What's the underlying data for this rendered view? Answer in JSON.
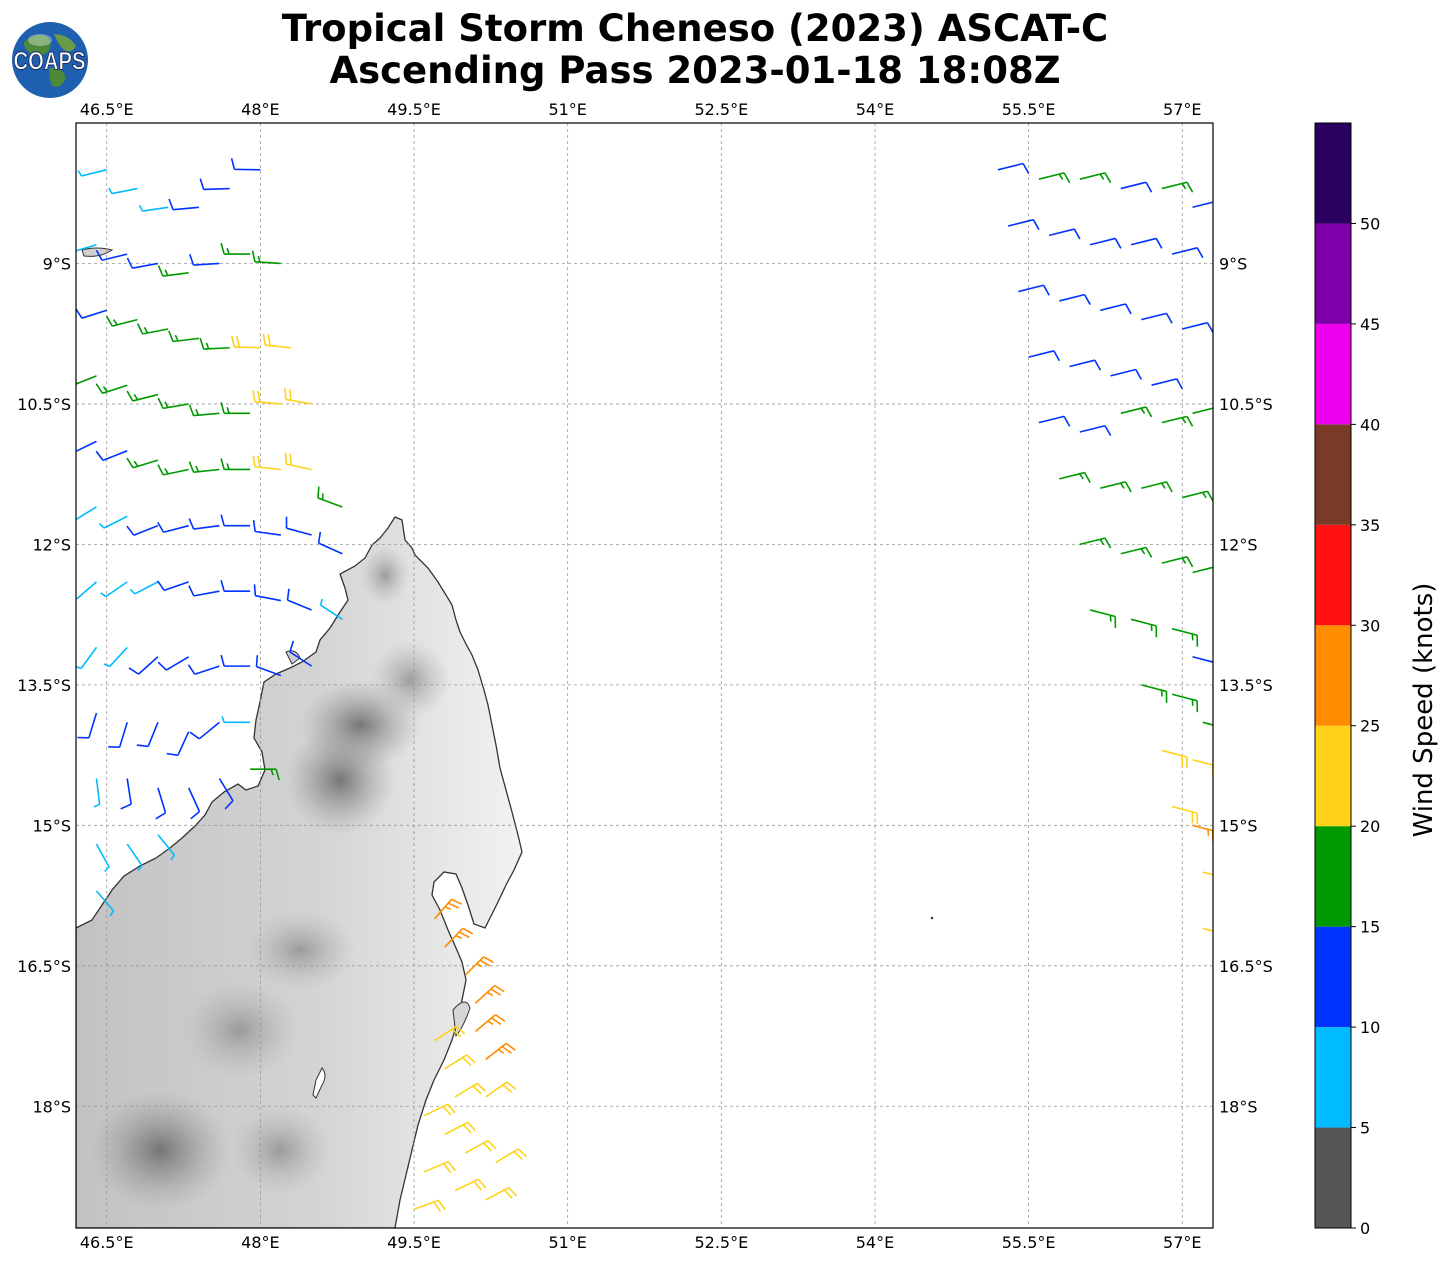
{
  "title": {
    "line1": "Tropical Storm Cheneso (2023) ASCAT-C",
    "line2": "Ascending Pass 2023-01-18 18:08Z"
  },
  "logo": {
    "text": "COAPS",
    "icon": "globe-icon"
  },
  "map": {
    "lon_range": [
      46.2,
      57.3
    ],
    "lat_range": [
      -19.3,
      -7.5
    ],
    "lon_ticks": [
      {
        "value": 46.5,
        "label": "46.5°E"
      },
      {
        "value": 48.0,
        "label": "48°E"
      },
      {
        "value": 49.5,
        "label": "49.5°E"
      },
      {
        "value": 51.0,
        "label": "51°E"
      },
      {
        "value": 52.5,
        "label": "52.5°E"
      },
      {
        "value": 54.0,
        "label": "54°E"
      },
      {
        "value": 55.5,
        "label": "55.5°E"
      },
      {
        "value": 57.0,
        "label": "57°E"
      }
    ],
    "lat_ticks": [
      {
        "value": -9.0,
        "label": "9°S"
      },
      {
        "value": -10.5,
        "label": "10.5°S"
      },
      {
        "value": -12.0,
        "label": "12°S"
      },
      {
        "value": -13.5,
        "label": "13.5°S"
      },
      {
        "value": -15.0,
        "label": "15°S"
      },
      {
        "value": -16.5,
        "label": "16.5°S"
      },
      {
        "value": -18.0,
        "label": "18°S"
      }
    ],
    "gridlines": true,
    "land_name": "Madagascar (northern)"
  },
  "colorbar": {
    "label": "Wind Speed (knots)",
    "ticks": [
      "0",
      "5",
      "10",
      "15",
      "20",
      "25",
      "30",
      "35",
      "40",
      "45",
      "50"
    ],
    "bins": [
      {
        "from": 0,
        "to": 5,
        "color": "#555555"
      },
      {
        "from": 5,
        "to": 10,
        "color": "#00bbff"
      },
      {
        "from": 10,
        "to": 15,
        "color": "#0033ff"
      },
      {
        "from": 15,
        "to": 20,
        "color": "#009900"
      },
      {
        "from": 20,
        "to": 25,
        "color": "#ffd21a"
      },
      {
        "from": 25,
        "to": 30,
        "color": "#ff8c00"
      },
      {
        "from": 30,
        "to": 35,
        "color": "#ff1111"
      },
      {
        "from": 35,
        "to": 40,
        "color": "#7a3a28"
      },
      {
        "from": 40,
        "to": 45,
        "color": "#ee00ee"
      },
      {
        "from": 45,
        "to": 50,
        "color": "#7d00aa"
      },
      {
        "from": 50,
        "to": 55,
        "color": "#2a0060"
      }
    ]
  },
  "wind_swaths": [
    {
      "name": "west-swath",
      "points": [
        {
          "lon": 46.5,
          "lat": -8.0,
          "spd": 8
        },
        {
          "lon": 46.8,
          "lat": -8.2,
          "spd": 8
        },
        {
          "lon": 47.1,
          "lat": -8.4,
          "spd": 8
        },
        {
          "lon": 47.4,
          "lat": -8.4,
          "spd": 12
        },
        {
          "lon": 47.7,
          "lat": -8.2,
          "spd": 12
        },
        {
          "lon": 48.0,
          "lat": -8.0,
          "spd": 12
        },
        {
          "lon": 46.4,
          "lat": -8.8,
          "spd": 8
        },
        {
          "lon": 46.7,
          "lat": -8.9,
          "spd": 12
        },
        {
          "lon": 47.0,
          "lat": -9.0,
          "spd": 12
        },
        {
          "lon": 47.3,
          "lat": -9.1,
          "spd": 16
        },
        {
          "lon": 47.6,
          "lat": -9.0,
          "spd": 12
        },
        {
          "lon": 47.9,
          "lat": -8.9,
          "spd": 16
        },
        {
          "lon": 48.2,
          "lat": -9.0,
          "spd": 16
        },
        {
          "lon": 46.5,
          "lat": -9.5,
          "spd": 12
        },
        {
          "lon": 46.8,
          "lat": -9.6,
          "spd": 16
        },
        {
          "lon": 47.1,
          "lat": -9.7,
          "spd": 16
        },
        {
          "lon": 47.4,
          "lat": -9.8,
          "spd": 16
        },
        {
          "lon": 47.7,
          "lat": -9.9,
          "spd": 18
        },
        {
          "lon": 48.0,
          "lat": -9.9,
          "spd": 22
        },
        {
          "lon": 48.3,
          "lat": -9.9,
          "spd": 22
        },
        {
          "lon": 46.4,
          "lat": -10.2,
          "spd": 16
        },
        {
          "lon": 46.7,
          "lat": -10.3,
          "spd": 16
        },
        {
          "lon": 47.0,
          "lat": -10.4,
          "spd": 17
        },
        {
          "lon": 47.3,
          "lat": -10.5,
          "spd": 18
        },
        {
          "lon": 47.6,
          "lat": -10.6,
          "spd": 18
        },
        {
          "lon": 47.9,
          "lat": -10.6,
          "spd": 18
        },
        {
          "lon": 48.2,
          "lat": -10.5,
          "spd": 22
        },
        {
          "lon": 48.5,
          "lat": -10.5,
          "spd": 22
        },
        {
          "lon": 46.4,
          "lat": -10.9,
          "spd": 12
        },
        {
          "lon": 46.7,
          "lat": -11.0,
          "spd": 12
        },
        {
          "lon": 47.0,
          "lat": -11.1,
          "spd": 16
        },
        {
          "lon": 47.3,
          "lat": -11.2,
          "spd": 16
        },
        {
          "lon": 47.6,
          "lat": -11.2,
          "spd": 17
        },
        {
          "lon": 47.9,
          "lat": -11.2,
          "spd": 18
        },
        {
          "lon": 48.2,
          "lat": -11.2,
          "spd": 22
        },
        {
          "lon": 48.5,
          "lat": -11.2,
          "spd": 22
        },
        {
          "lon": 48.8,
          "lat": -11.6,
          "spd": 18
        },
        {
          "lon": 46.4,
          "lat": -11.6,
          "spd": 8
        },
        {
          "lon": 46.7,
          "lat": -11.7,
          "spd": 8
        },
        {
          "lon": 47.0,
          "lat": -11.8,
          "spd": 12
        },
        {
          "lon": 47.3,
          "lat": -11.8,
          "spd": 12
        },
        {
          "lon": 47.6,
          "lat": -11.8,
          "spd": 12
        },
        {
          "lon": 47.9,
          "lat": -11.8,
          "spd": 12
        },
        {
          "lon": 48.2,
          "lat": -11.9,
          "spd": 12
        },
        {
          "lon": 48.5,
          "lat": -11.9,
          "spd": 12
        },
        {
          "lon": 48.8,
          "lat": -12.1,
          "spd": 12
        },
        {
          "lon": 46.4,
          "lat": -12.4,
          "spd": 8
        },
        {
          "lon": 46.7,
          "lat": -12.4,
          "spd": 8
        },
        {
          "lon": 47.0,
          "lat": -12.4,
          "spd": 8
        },
        {
          "lon": 47.3,
          "lat": -12.4,
          "spd": 12
        },
        {
          "lon": 47.6,
          "lat": -12.5,
          "spd": 12
        },
        {
          "lon": 47.9,
          "lat": -12.5,
          "spd": 12
        },
        {
          "lon": 48.2,
          "lat": -12.6,
          "spd": 12
        },
        {
          "lon": 48.5,
          "lat": -12.7,
          "spd": 12
        },
        {
          "lon": 48.8,
          "lat": -12.8,
          "spd": 8
        },
        {
          "lon": 46.4,
          "lat": -13.1,
          "spd": 8
        },
        {
          "lon": 46.7,
          "lat": -13.1,
          "spd": 8
        },
        {
          "lon": 47.0,
          "lat": -13.2,
          "spd": 12
        },
        {
          "lon": 47.3,
          "lat": -13.2,
          "spd": 12
        },
        {
          "lon": 47.6,
          "lat": -13.3,
          "spd": 12
        },
        {
          "lon": 47.9,
          "lat": -13.3,
          "spd": 12
        },
        {
          "lon": 48.2,
          "lat": -13.4,
          "spd": 12
        },
        {
          "lon": 48.5,
          "lat": -13.3,
          "spd": 12
        },
        {
          "lon": 46.4,
          "lat": -13.8,
          "spd": 12
        },
        {
          "lon": 46.7,
          "lat": -13.9,
          "spd": 12
        },
        {
          "lon": 47.0,
          "lat": -13.9,
          "spd": 12
        },
        {
          "lon": 47.3,
          "lat": -14.0,
          "spd": 12
        },
        {
          "lon": 47.6,
          "lat": -13.9,
          "spd": 12
        },
        {
          "lon": 47.9,
          "lat": -13.9,
          "spd": 8
        },
        {
          "lon": 46.4,
          "lat": -14.5,
          "spd": 8
        },
        {
          "lon": 46.7,
          "lat": -14.5,
          "spd": 12
        },
        {
          "lon": 47.0,
          "lat": -14.6,
          "spd": 12
        },
        {
          "lon": 47.3,
          "lat": -14.6,
          "spd": 12
        },
        {
          "lon": 47.6,
          "lat": -14.5,
          "spd": 12
        },
        {
          "lon": 47.9,
          "lat": -14.4,
          "spd": 18
        },
        {
          "lon": 46.4,
          "lat": -15.2,
          "spd": 8
        },
        {
          "lon": 46.7,
          "lat": -15.2,
          "spd": 8
        },
        {
          "lon": 47.0,
          "lat": -15.1,
          "spd": 8
        },
        {
          "lon": 46.4,
          "lat": -15.7,
          "spd": 8
        }
      ]
    },
    {
      "name": "land-edge-swath",
      "points": [
        {
          "lon": 49.7,
          "lat": -16.0,
          "spd": 27
        },
        {
          "lon": 49.8,
          "lat": -16.3,
          "spd": 27
        },
        {
          "lon": 50.0,
          "lat": -16.6,
          "spd": 27
        },
        {
          "lon": 50.1,
          "lat": -16.9,
          "spd": 27
        },
        {
          "lon": 50.1,
          "lat": -17.2,
          "spd": 27
        },
        {
          "lon": 50.2,
          "lat": -17.5,
          "spd": 27
        },
        {
          "lon": 49.7,
          "lat": -17.3,
          "spd": 22
        },
        {
          "lon": 49.8,
          "lat": -17.6,
          "spd": 22
        },
        {
          "lon": 49.9,
          "lat": -17.9,
          "spd": 22
        },
        {
          "lon": 50.2,
          "lat": -17.9,
          "spd": 22
        },
        {
          "lon": 49.6,
          "lat": -18.1,
          "spd": 22
        },
        {
          "lon": 49.8,
          "lat": -18.3,
          "spd": 22
        },
        {
          "lon": 50.0,
          "lat": -18.5,
          "spd": 22
        },
        {
          "lon": 50.3,
          "lat": -18.6,
          "spd": 22
        },
        {
          "lon": 49.6,
          "lat": -18.7,
          "spd": 22
        },
        {
          "lon": 49.9,
          "lat": -18.9,
          "spd": 22
        },
        {
          "lon": 50.2,
          "lat": -19.0,
          "spd": 22
        },
        {
          "lon": 49.5,
          "lat": -19.1,
          "spd": 22
        }
      ]
    },
    {
      "name": "east-swath",
      "points": [
        {
          "lon": 55.2,
          "lat": -8.0,
          "spd": 12
        },
        {
          "lon": 55.6,
          "lat": -8.1,
          "spd": 17
        },
        {
          "lon": 56.0,
          "lat": -8.1,
          "spd": 17
        },
        {
          "lon": 56.4,
          "lat": -8.2,
          "spd": 12
        },
        {
          "lon": 56.8,
          "lat": -8.2,
          "spd": 17
        },
        {
          "lon": 57.1,
          "lat": -8.4,
          "spd": 12
        },
        {
          "lon": 55.3,
          "lat": -8.6,
          "spd": 12
        },
        {
          "lon": 55.7,
          "lat": -8.7,
          "spd": 12
        },
        {
          "lon": 56.1,
          "lat": -8.8,
          "spd": 12
        },
        {
          "lon": 56.5,
          "lat": -8.8,
          "spd": 12
        },
        {
          "lon": 56.9,
          "lat": -8.9,
          "spd": 12
        },
        {
          "lon": 55.4,
          "lat": -9.3,
          "spd": 12
        },
        {
          "lon": 55.8,
          "lat": -9.4,
          "spd": 12
        },
        {
          "lon": 56.2,
          "lat": -9.5,
          "spd": 12
        },
        {
          "lon": 56.6,
          "lat": -9.6,
          "spd": 12
        },
        {
          "lon": 57.0,
          "lat": -9.7,
          "spd": 12
        },
        {
          "lon": 55.5,
          "lat": -10.0,
          "spd": 12
        },
        {
          "lon": 55.9,
          "lat": -10.1,
          "spd": 12
        },
        {
          "lon": 56.3,
          "lat": -10.2,
          "spd": 12
        },
        {
          "lon": 56.7,
          "lat": -10.3,
          "spd": 12
        },
        {
          "lon": 55.6,
          "lat": -10.7,
          "spd": 12
        },
        {
          "lon": 56.0,
          "lat": -10.8,
          "spd": 12
        },
        {
          "lon": 56.4,
          "lat": -10.6,
          "spd": 17
        },
        {
          "lon": 56.8,
          "lat": -10.7,
          "spd": 17
        },
        {
          "lon": 57.1,
          "lat": -10.6,
          "spd": 17
        },
        {
          "lon": 55.8,
          "lat": -11.3,
          "spd": 17
        },
        {
          "lon": 56.2,
          "lat": -11.4,
          "spd": 17
        },
        {
          "lon": 56.6,
          "lat": -11.4,
          "spd": 17
        },
        {
          "lon": 57.0,
          "lat": -11.5,
          "spd": 17
        },
        {
          "lon": 56.0,
          "lat": -12.0,
          "spd": 17
        },
        {
          "lon": 56.4,
          "lat": -12.1,
          "spd": 17
        },
        {
          "lon": 56.8,
          "lat": -12.2,
          "spd": 17
        },
        {
          "lon": 57.1,
          "lat": -12.3,
          "spd": 17
        },
        {
          "lon": 56.1,
          "lat": -12.7,
          "spd": 17
        },
        {
          "lon": 56.5,
          "lat": -12.8,
          "spd": 17
        },
        {
          "lon": 56.9,
          "lat": -12.9,
          "spd": 17
        },
        {
          "lon": 57.1,
          "lat": -13.2,
          "spd": 12
        },
        {
          "lon": 56.6,
          "lat": -13.5,
          "spd": 17
        },
        {
          "lon": 56.9,
          "lat": -13.6,
          "spd": 17
        },
        {
          "lon": 57.2,
          "lat": -13.9,
          "spd": 17
        },
        {
          "lon": 56.8,
          "lat": -14.2,
          "spd": 22
        },
        {
          "lon": 57.1,
          "lat": -14.3,
          "spd": 22
        },
        {
          "lon": 56.9,
          "lat": -14.8,
          "spd": 22
        },
        {
          "lon": 57.1,
          "lat": -15.0,
          "spd": 27
        },
        {
          "lon": 57.2,
          "lat": -15.5,
          "spd": 22
        },
        {
          "lon": 57.2,
          "lat": -16.1,
          "spd": 22
        }
      ]
    }
  ]
}
